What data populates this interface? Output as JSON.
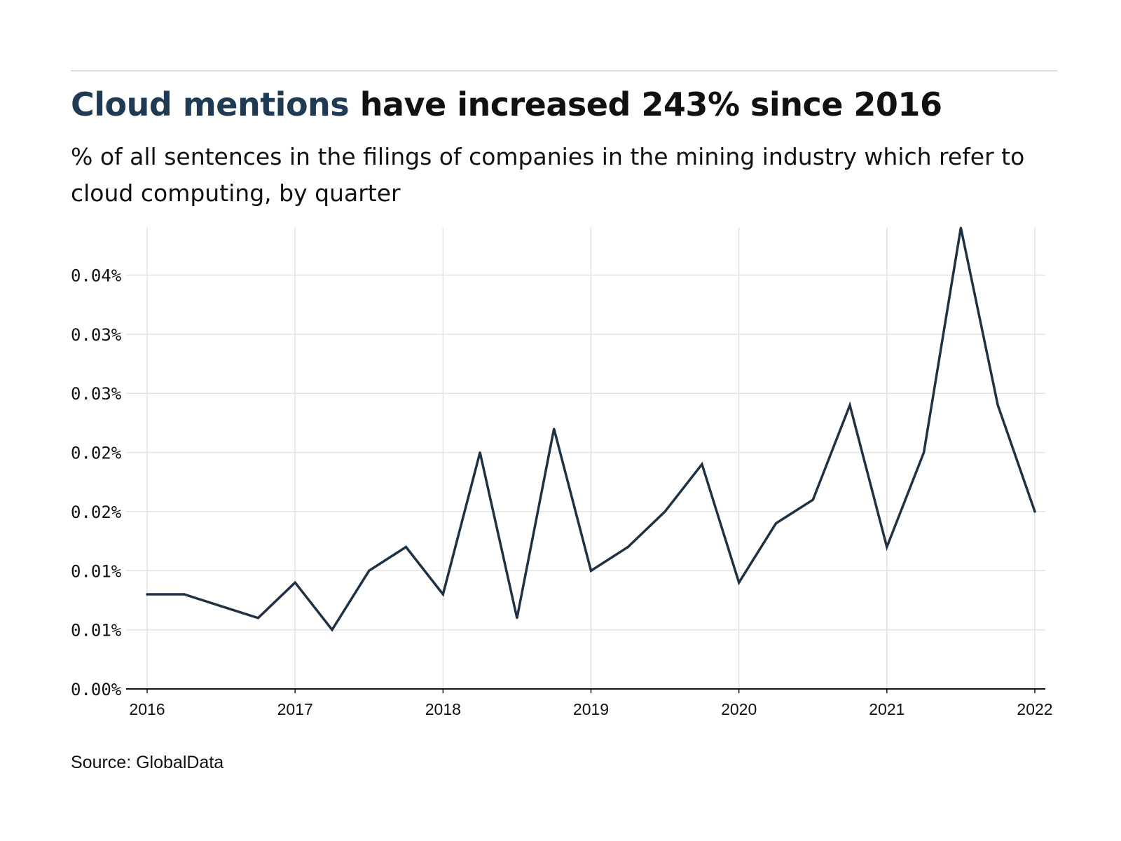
{
  "header": {
    "title_accent": "Cloud mentions",
    "title_rest": "have increased 243% since 2016",
    "subtitle": "% of all sentences in the filings of companies in the mining industry which refer to cloud computing, by quarter"
  },
  "footer": {
    "source": "Source: GlobalData"
  },
  "colors": {
    "line": "#1f3244",
    "accent": "#1f3a52",
    "grid": "#e3e3e3",
    "axis": "#111111"
  },
  "chart_data": {
    "type": "line",
    "title": "Cloud mentions have increased 243% since 2016",
    "subtitle": "% of all sentences in the filings of companies in the mining industry which refer to cloud computing, by quarter",
    "xlabel": "",
    "ylabel": "",
    "x_ticks": [
      "2016",
      "2017",
      "2018",
      "2019",
      "2020",
      "2021",
      "2022"
    ],
    "y_ticks": [
      {
        "value": 0.0,
        "label": "0.00%"
      },
      {
        "value": 0.005,
        "label": "0.01%"
      },
      {
        "value": 0.01,
        "label": "0.01%"
      },
      {
        "value": 0.015,
        "label": "0.02%"
      },
      {
        "value": 0.02,
        "label": "0.02%"
      },
      {
        "value": 0.025,
        "label": "0.03%"
      },
      {
        "value": 0.03,
        "label": "0.03%"
      },
      {
        "value": 0.035,
        "label": "0.04%"
      }
    ],
    "xlim": [
      2016,
      2022
    ],
    "ylim": [
      0,
      0.039
    ],
    "grid": true,
    "series": [
      {
        "x": [
          2016.0,
          2016.25,
          2016.5,
          2016.75,
          2017.0,
          2017.25,
          2017.5,
          2017.75,
          2018.0,
          2018.25,
          2018.5,
          2018.75,
          2019.0,
          2019.25,
          2019.5,
          2019.75,
          2020.0,
          2020.25,
          2020.5,
          2020.75,
          2021.0,
          2021.25,
          2021.5,
          2021.75,
          2022.0
        ],
        "values": [
          0.008,
          0.008,
          0.007,
          0.006,
          0.009,
          0.005,
          0.01,
          0.012,
          0.008,
          0.02,
          0.006,
          0.022,
          0.01,
          0.012,
          0.015,
          0.019,
          0.009,
          0.014,
          0.016,
          0.024,
          0.012,
          0.02,
          0.039,
          0.024,
          0.015
        ]
      }
    ]
  }
}
